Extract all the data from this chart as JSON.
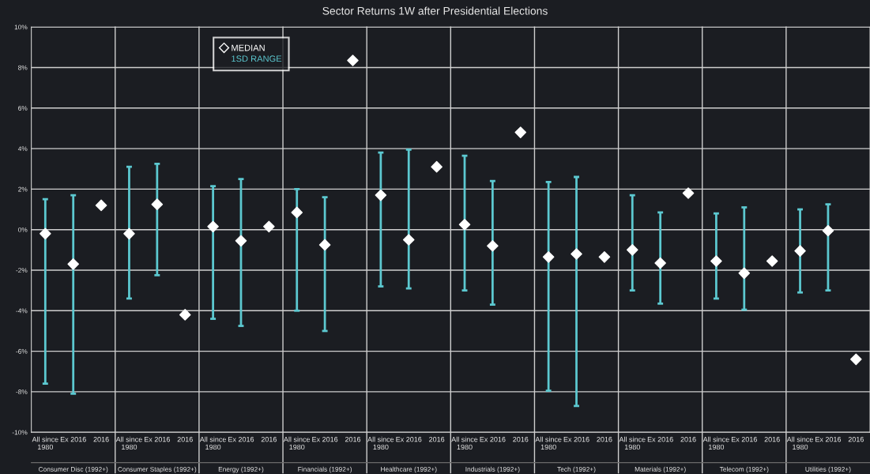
{
  "chart_data": {
    "type": "scatter",
    "title": "Sector Returns 1W after Presidential Elections",
    "categories": [
      "All since\n1980",
      "Ex 2016",
      "2016",
      "All since\n1980",
      "Ex 2016",
      "2016",
      "All since\n1980",
      "Ex 2016",
      "2016",
      "All since\n1980",
      "Ex 2016",
      "2016",
      "All since\n1980",
      "Ex 2016",
      "2016",
      "All since\n1980",
      "Ex 2016",
      "2016",
      "All since\n1980",
      "Ex 2016",
      "2016",
      "All since\n1980",
      "Ex 2016",
      "2016",
      "All since\n1980",
      "Ex 2016",
      "2016",
      "All since\n1980",
      "Ex 2016",
      "2016"
    ],
    "annotations": [
      "Consumer Disc (1992+)",
      "Consumer Staples (1992+)",
      "Energy (1992+)",
      "Financials (1992+)",
      "Healthcare (1992+)",
      "Industrials (1992+)",
      "Tech (1992+)",
      "Materials (1992+)",
      "Telecom (1992+)",
      "Utilities (1992+)"
    ],
    "series": [
      {
        "name": "MEDIAN",
        "color": "#ffffff",
        "marker": "diamond",
        "values": [
          -0.2,
          -1.7,
          1.2,
          -0.2,
          1.25,
          -4.2,
          0.15,
          -0.55,
          0.15,
          0.85,
          -0.75,
          8.35,
          1.7,
          -0.5,
          3.1,
          0.25,
          -0.8,
          4.8,
          -1.35,
          -1.2,
          -1.35,
          -1.0,
          -1.65,
          1.8,
          -1.55,
          -2.15,
          -1.55,
          -1.05,
          -0.05,
          -6.4
        ],
        "errors": [
          [
            -7.6,
            1.5
          ],
          [
            -8.1,
            1.7
          ],
          null,
          [
            -3.4,
            3.1
          ],
          [
            -2.25,
            3.25
          ],
          null,
          [
            -4.4,
            2.15
          ],
          [
            -4.75,
            2.5
          ],
          null,
          [
            -4.0,
            2.0
          ],
          [
            -5.0,
            1.6
          ],
          null,
          [
            -2.8,
            3.8
          ],
          [
            -2.9,
            3.95
          ],
          null,
          [
            -3.0,
            3.65
          ],
          [
            -3.7,
            2.4
          ],
          null,
          [
            -7.95,
            2.35
          ],
          [
            -8.7,
            2.6
          ],
          null,
          [
            -3.0,
            1.7
          ],
          [
            -3.65,
            0.85
          ],
          null,
          [
            -3.4,
            0.8
          ],
          [
            -3.95,
            1.1
          ],
          null,
          [
            -3.1,
            1.0
          ],
          [
            -3.0,
            1.25
          ],
          null
        ]
      }
    ],
    "legend_title": "1SD RANGE",
    "ylim": [
      -10,
      10
    ],
    "yticks": [
      {
        "value": -10,
        "label": "-10%"
      },
      {
        "value": -8,
        "label": "-8%"
      },
      {
        "value": -6,
        "label": "-6%"
      },
      {
        "value": -4,
        "label": "-4%"
      },
      {
        "value": -2,
        "label": "-2%"
      },
      {
        "value": 0,
        "label": "0%"
      },
      {
        "value": 2,
        "label": "2%"
      },
      {
        "value": 4,
        "label": "4%"
      },
      {
        "value": 6,
        "label": "6%"
      },
      {
        "value": 8,
        "label": "8%"
      },
      {
        "value": 10,
        "label": "10%"
      }
    ],
    "grid": "y",
    "legend": "top left"
  }
}
